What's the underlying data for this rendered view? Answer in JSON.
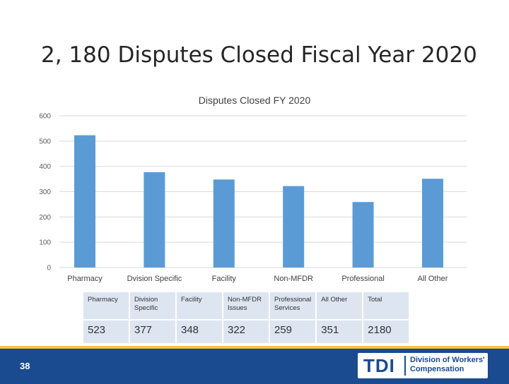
{
  "slide": {
    "title": "2, 180 Disputes Closed Fiscal Year 2020",
    "page_number": "38"
  },
  "chart_data": {
    "type": "bar",
    "title": "Disputes Closed FY 2020",
    "categories": [
      "Pharmacy",
      "Dvision Specific",
      "Facility",
      "Non-MFDR",
      "Professional",
      "All Other"
    ],
    "values": [
      523,
      377,
      348,
      322,
      259,
      351
    ],
    "yticks": [
      0,
      100,
      200,
      300,
      400,
      500,
      600
    ],
    "ylim": [
      0,
      600
    ],
    "xlabel": "",
    "ylabel": "",
    "grid": true,
    "bar_color": "#5b9bd5"
  },
  "table": {
    "headers": [
      "Pharmacy",
      "Division Specific",
      "Facility",
      "Non-MFDR Issues",
      "Professional Services",
      "All Other",
      "Total"
    ],
    "values": [
      "523",
      "377",
      "348",
      "322",
      "259",
      "351",
      "2180"
    ]
  },
  "footer": {
    "logo_mark": "TDI",
    "logo_line1": "Division of Workers'",
    "logo_line2": "Compensation",
    "bar_color": "#1a4a8f",
    "accent_color": "#f5c242"
  }
}
